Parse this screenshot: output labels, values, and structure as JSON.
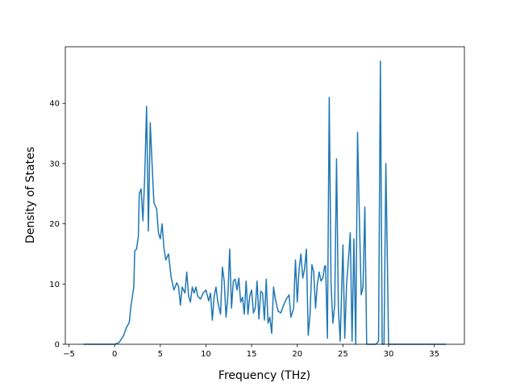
{
  "chart_data": {
    "type": "line",
    "x_label": "Frequency (THz)",
    "y_label": "Density of States",
    "color": "#1f77b4",
    "xlim": [
      -5.4,
      38.3
    ],
    "ylim": [
      0,
      49.4
    ],
    "xticks": [
      {
        "value": -5,
        "label": "−5"
      },
      0,
      5,
      10,
      15,
      20,
      25,
      30,
      35
    ],
    "yticks": [
      0,
      10,
      20,
      30,
      40
    ],
    "x": [
      -3.4,
      0,
      0.5,
      1,
      1.3,
      1.6,
      1.8,
      2.1,
      2.2,
      2.4,
      2.6,
      2.7,
      2.9,
      3.1,
      3.3,
      3.5,
      3.7,
      3.9,
      4.1,
      4.3,
      4.6,
      4.8,
      5.0,
      5.2,
      5.4,
      5.6,
      5.9,
      6.2,
      6.5,
      6.8,
      7.0,
      7.2,
      7.4,
      7.7,
      7.9,
      8.1,
      8.3,
      8.5,
      8.7,
      8.9,
      9.1,
      9.4,
      9.7,
      10,
      10.3,
      10.5,
      10.7,
      10.9,
      11.1,
      11.3,
      11.6,
      11.8,
      12.0,
      12.2,
      12.4,
      12.6,
      12.8,
      13.0,
      13.2,
      13.4,
      13.6,
      13.8,
      14.0,
      14.2,
      14.4,
      14.6,
      14.8,
      15.0,
      15.2,
      15.4,
      15.6,
      15.8,
      16.0,
      16.2,
      16.4,
      16.6,
      16.8,
      17.0,
      17.2,
      17.4,
      17.6,
      17.9,
      18.2,
      18.5,
      18.8,
      19.1,
      19.3,
      19.6,
      19.8,
      20.0,
      20.2,
      20.4,
      20.6,
      20.8,
      21.0,
      21.2,
      21.4,
      21.6,
      21.8,
      22.0,
      22.2,
      22.4,
      22.6,
      22.8,
      23.0,
      23.1,
      23.3,
      23.5,
      23.7,
      23.9,
      24.1,
      24.3,
      24.5,
      24.7,
      25.0,
      25.2,
      25.4,
      25.6,
      25.8,
      26.0,
      26.2,
      26.4,
      26.6,
      26.8,
      27.0,
      27.2,
      27.4,
      27.6,
      28.0,
      28.6,
      28.9,
      29.1,
      29.3,
      29.5,
      29.7,
      30.0,
      36.3
    ],
    "values": [
      0,
      0,
      0.3,
      1.5,
      2.8,
      3.6,
      6.5,
      9.5,
      15.5,
      15.8,
      18,
      25,
      25.8,
      20.5,
      28,
      39.5,
      18.8,
      36.8,
      30,
      23.5,
      22.5,
      18.5,
      17.5,
      20,
      16,
      14,
      15,
      11,
      9,
      10.2,
      9.6,
      6.5,
      9.5,
      8.5,
      12,
      8,
      7,
      9.5,
      8.5,
      9.5,
      8,
      7.5,
      8.5,
      9,
      7.2,
      8.5,
      4,
      8,
      9.5,
      7,
      5,
      12.8,
      10.5,
      4.5,
      8,
      15.8,
      6,
      10.5,
      10.8,
      9,
      11,
      7,
      7.8,
      5,
      10.5,
      5,
      8,
      9,
      5.2,
      6,
      10.5,
      4.2,
      8.8,
      8.5,
      4,
      10.8,
      3.5,
      4.5,
      1.8,
      9.5,
      7.5,
      5.5,
      5.2,
      6.5,
      7.5,
      8.2,
      4.5,
      6,
      14,
      7,
      12.5,
      15,
      11,
      12.5,
      15.8,
      1.5,
      5,
      13.2,
      12,
      6,
      10,
      12,
      10.5,
      11,
      13,
      13,
      1,
      41,
      10,
      3.5,
      6.5,
      30.8,
      6,
      0.5,
      16.5,
      1,
      10,
      14,
      18.5,
      0.5,
      17.5,
      0,
      35.2,
      21,
      8.2,
      9.5,
      22.8,
      0,
      0,
      0,
      0.5,
      47,
      0,
      0,
      30,
      0,
      0
    ]
  }
}
